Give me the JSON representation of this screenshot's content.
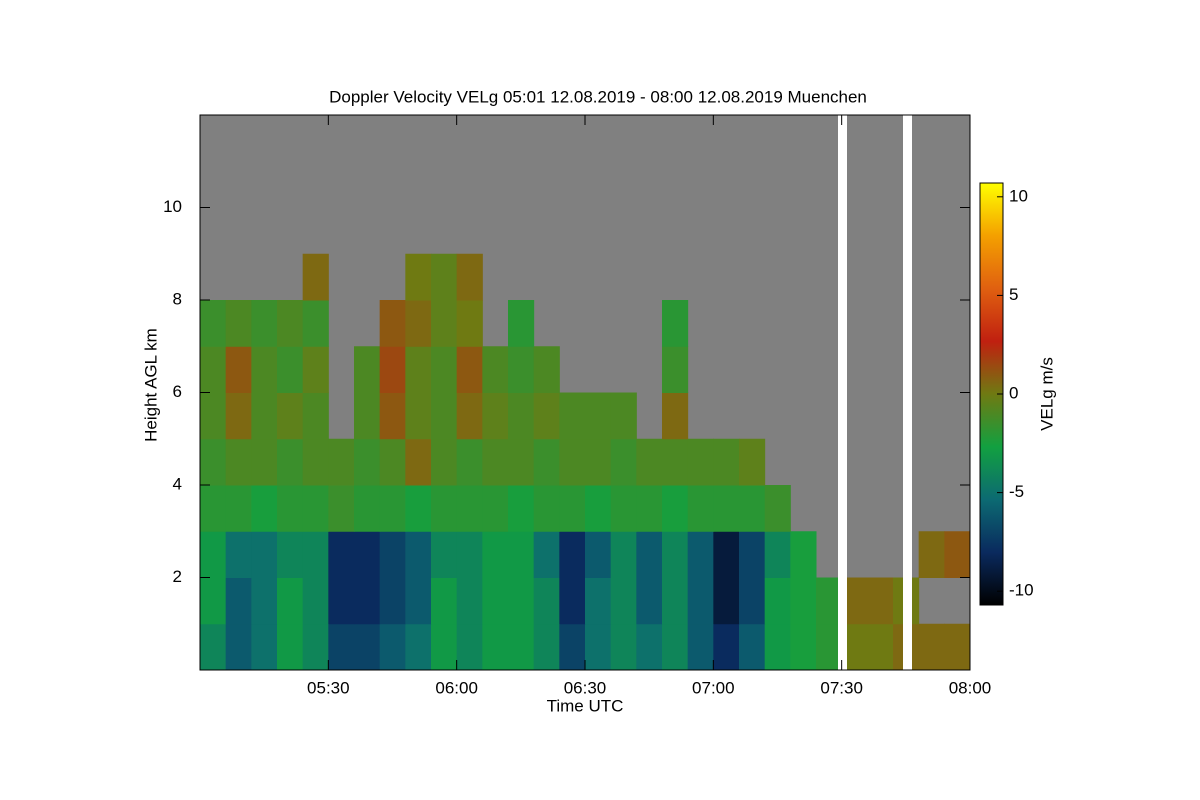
{
  "chart_data": {
    "type": "heatmap",
    "title": "Doppler Velocity VELg   05:01 12.08.2019 - 08:00 12.08.2019 Muenchen",
    "x_label": "Time UTC",
    "y_label": "Height AGL km",
    "colorbar_label": "VELg m/s",
    "x": [
      5.05,
      5.15,
      5.25,
      5.35,
      5.45,
      5.55,
      5.65,
      5.75,
      5.85,
      5.95,
      6.05,
      6.15,
      6.25,
      6.35,
      6.45,
      6.55,
      6.65,
      6.75,
      6.85,
      6.95,
      7.05,
      7.15,
      7.25,
      7.35,
      7.45,
      7.55,
      7.65,
      7.75,
      7.85,
      7.95
    ],
    "y": [
      0.5,
      1.5,
      2.5,
      3.5,
      4.5,
      5.5,
      6.5,
      7.5,
      8.5,
      9.5,
      10.5,
      11.5
    ],
    "values": [
      [
        -4,
        -6,
        -5,
        -3,
        -4,
        -7,
        -7,
        -6,
        -5,
        -3,
        -4,
        -3,
        -3,
        -4,
        -7,
        -5,
        -4,
        -5,
        -4,
        -6,
        -8,
        -6,
        -3,
        -2.5,
        -2,
        0,
        0,
        0.5,
        0.5,
        0.5
      ],
      [
        -3,
        -6,
        -5,
        -3,
        -4,
        -8,
        -8,
        -7,
        -6,
        -3,
        -4,
        -3,
        -3,
        -4,
        -8,
        -5,
        -4,
        -6,
        -4,
        -6,
        -9,
        -7,
        -3,
        -2.5,
        -2,
        0.5,
        0.5,
        0,
        null,
        null
      ],
      [
        -3,
        -5,
        -5,
        -4,
        -4,
        -8,
        -8,
        -7,
        -6,
        -4,
        -4,
        -3,
        -3,
        -5,
        -8,
        -6,
        -4,
        -6,
        -4,
        -6,
        -9,
        -7,
        -4,
        -2.5,
        null,
        null,
        null,
        null,
        0.5,
        1
      ],
      [
        -2,
        -2,
        -2.5,
        -2,
        -2,
        -1.5,
        -2,
        -2,
        -2.5,
        -2,
        -2,
        -2,
        -2.5,
        -2,
        -2,
        -2.5,
        -2,
        -2,
        -2.5,
        -2,
        -2,
        -2,
        -1.5,
        null,
        null,
        null,
        null,
        null,
        null,
        null
      ],
      [
        -1.5,
        -1,
        -1,
        -1.5,
        -1,
        -1,
        -1.5,
        -1,
        0.5,
        -1,
        -1.5,
        -1,
        -1,
        -1.5,
        -1,
        -1,
        -1.5,
        -1,
        -1,
        -1,
        -1,
        -0.5,
        null,
        null,
        null,
        null,
        null,
        null,
        null,
        null
      ],
      [
        -1,
        0.5,
        -1,
        -0.5,
        -1,
        null,
        -1,
        1,
        -0.5,
        -1,
        0.5,
        -0.5,
        -1,
        -0.5,
        -1,
        -1,
        -1,
        null,
        0.5,
        null,
        null,
        null,
        null,
        null,
        null,
        null,
        null,
        null,
        null,
        null
      ],
      [
        -1,
        1,
        -1,
        -1.5,
        -0.5,
        null,
        -1,
        1.5,
        -0.5,
        -1,
        1,
        -1,
        -1.5,
        -1,
        null,
        null,
        null,
        null,
        -1.5,
        null,
        null,
        null,
        null,
        null,
        null,
        null,
        null,
        null,
        null,
        null
      ],
      [
        -1.5,
        -1,
        -1.5,
        -1,
        -1.5,
        null,
        null,
        1,
        0.5,
        -0.5,
        0,
        null,
        -2,
        null,
        null,
        null,
        null,
        null,
        -2,
        null,
        null,
        null,
        null,
        null,
        null,
        null,
        null,
        null,
        null,
        null
      ],
      [
        null,
        null,
        null,
        null,
        0.5,
        null,
        null,
        null,
        0,
        -0.5,
        0.5,
        null,
        null,
        null,
        null,
        null,
        null,
        null,
        null,
        null,
        null,
        null,
        null,
        null,
        null,
        null,
        null,
        null,
        null,
        null
      ],
      [
        null,
        null,
        null,
        null,
        null,
        null,
        null,
        null,
        null,
        null,
        null,
        null,
        null,
        null,
        null,
        null,
        null,
        null,
        null,
        null,
        null,
        null,
        null,
        null,
        null,
        null,
        null,
        null,
        null,
        null
      ],
      [
        null,
        null,
        null,
        null,
        null,
        null,
        null,
        null,
        null,
        null,
        null,
        null,
        null,
        null,
        null,
        null,
        null,
        null,
        null,
        null,
        null,
        null,
        null,
        null,
        null,
        null,
        null,
        null,
        null,
        null
      ],
      [
        null,
        null,
        null,
        null,
        null,
        null,
        null,
        null,
        null,
        null,
        null,
        null,
        null,
        null,
        null,
        null,
        null,
        null,
        null,
        null,
        null,
        null,
        null,
        null,
        null,
        null,
        null,
        null,
        null,
        null
      ]
    ],
    "xlim": [
      5,
      8
    ],
    "xticks": [
      {
        "value": 5.5,
        "label": "05:30"
      },
      {
        "value": 6,
        "label": "06:00"
      },
      {
        "value": 6.5,
        "label": "06:30"
      },
      {
        "value": 7,
        "label": "07:00"
      },
      {
        "value": 7.5,
        "label": "07:30"
      },
      {
        "value": 8,
        "label": "08:00"
      }
    ],
    "ylim": [
      0,
      12
    ],
    "yticks": [
      2,
      4,
      6,
      8,
      10
    ],
    "zlim": [
      -10.7,
      10.7
    ],
    "zticks": [
      -10,
      -5,
      0,
      5,
      10
    ],
    "colormap": [
      "#000000",
      "#0a2a5e",
      "#0c6a72",
      "#12a040",
      "#6f7a12",
      "#c02010",
      "#e06010",
      "#f4a000",
      "#ffff00"
    ],
    "nodata_color": "#808080"
  }
}
